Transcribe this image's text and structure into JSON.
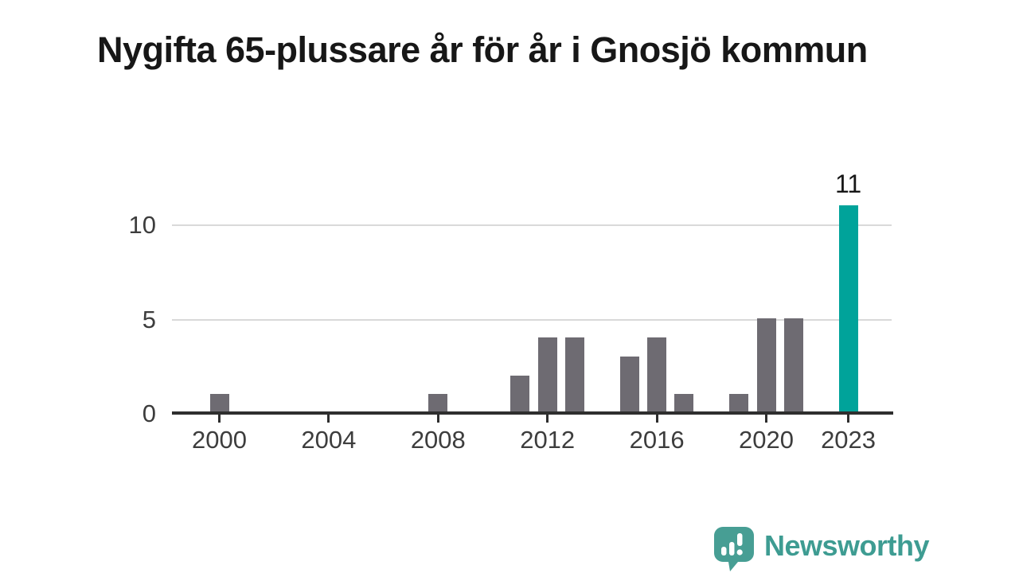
{
  "title": "Nygifta 65-plussare år för år i Gnosjö kommun",
  "chart_data": {
    "type": "bar",
    "title": "Nygifta 65-plussare år för år i Gnosjö kommun",
    "xlabel": "",
    "ylabel": "",
    "categories": [
      2000,
      2001,
      2002,
      2003,
      2004,
      2005,
      2006,
      2007,
      2008,
      2009,
      2010,
      2011,
      2012,
      2013,
      2014,
      2015,
      2016,
      2017,
      2018,
      2019,
      2020,
      2021,
      2022,
      2023
    ],
    "values": [
      1,
      0,
      0,
      0,
      0,
      0,
      0,
      0,
      1,
      0,
      0,
      2,
      4,
      4,
      0,
      3,
      4,
      1,
      0,
      1,
      5,
      5,
      0,
      11
    ],
    "ylim": [
      0,
      12
    ],
    "yticks": [
      0,
      5,
      10
    ],
    "xticks": [
      2000,
      2004,
      2008,
      2012,
      2016,
      2020,
      2023
    ],
    "grid": "horizontal-behind-bars",
    "legend": "none",
    "highlight_category": 2023,
    "highlight_value_label": "11",
    "bar_color": "#6e6b72",
    "highlight_color": "#00a39a",
    "gridline_color": "#d9d9d9",
    "axis_color": "#2e2e2e",
    "tick_label_color": "#3d3d3d"
  },
  "branding": {
    "wordmark": "Newsworthy",
    "wordmark_color": "#3e9c92",
    "logo_icon": "speech-bubble-bar-chart-exclamation",
    "logo_color": "#479e94"
  }
}
